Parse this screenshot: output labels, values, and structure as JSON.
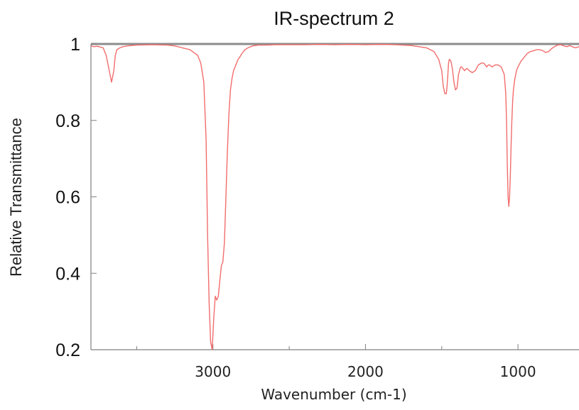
{
  "chart_data": {
    "type": "line",
    "title": "IR-spectrum 2",
    "xlabel": "Wavenumber (cm-1)",
    "ylabel": "Relative Transmittance",
    "xlim": [
      3800,
      600
    ],
    "ylim": [
      0.2,
      1.0
    ],
    "x_reversed": true,
    "xticks": [
      3000,
      2000,
      1000
    ],
    "xtick_labels": [
      "3000",
      "2000",
      "1000"
    ],
    "yticks": [
      0.2,
      0.4,
      0.6,
      0.8,
      1.0
    ],
    "ytick_labels": [
      "0.2",
      "0.4",
      "0.6",
      "0.8",
      "1"
    ],
    "grid": false,
    "line_color": "#f26d6d",
    "reference_line": {
      "y": 1.0,
      "color": "#8c8c8c"
    },
    "series": [
      {
        "x": [
          3800,
          3780,
          3760,
          3740,
          3720,
          3700,
          3680,
          3665,
          3650,
          3640,
          3630,
          3610,
          3590,
          3560,
          3500,
          3400,
          3300,
          3250,
          3200,
          3150,
          3100,
          3080,
          3060,
          3045,
          3035,
          3025,
          3015,
          3005,
          2995,
          2985,
          2975,
          2965,
          2955,
          2945,
          2935,
          2925,
          2915,
          2905,
          2895,
          2885,
          2875,
          2865,
          2855,
          2845,
          2835,
          2825,
          2810,
          2790,
          2770,
          2740,
          2700,
          2650,
          2600,
          2500,
          2400,
          2300,
          2200,
          2100,
          2000,
          1900,
          1800,
          1700,
          1600,
          1550,
          1520,
          1500,
          1490,
          1480,
          1470,
          1465,
          1460,
          1455,
          1450,
          1440,
          1430,
          1420,
          1410,
          1400,
          1390,
          1380,
          1375,
          1370,
          1360,
          1350,
          1340,
          1330,
          1320,
          1300,
          1280,
          1260,
          1240,
          1225,
          1215,
          1205,
          1195,
          1185,
          1170,
          1150,
          1130,
          1110,
          1090,
          1080,
          1075,
          1070,
          1065,
          1060,
          1055,
          1050,
          1045,
          1040,
          1035,
          1030,
          1020,
          1010,
          1000,
          980,
          960,
          940,
          920,
          900,
          880,
          860,
          840,
          820,
          800,
          780,
          760,
          740,
          720,
          700,
          680,
          660,
          640,
          620,
          600
        ],
        "values": [
          0.995,
          0.993,
          0.994,
          0.992,
          0.99,
          0.97,
          0.93,
          0.9,
          0.93,
          0.97,
          0.985,
          0.99,
          0.993,
          0.995,
          0.997,
          0.998,
          0.997,
          0.995,
          0.99,
          0.985,
          0.97,
          0.95,
          0.9,
          0.75,
          0.5,
          0.32,
          0.22,
          0.2,
          0.28,
          0.34,
          0.33,
          0.34,
          0.38,
          0.42,
          0.43,
          0.48,
          0.6,
          0.72,
          0.82,
          0.88,
          0.91,
          0.93,
          0.94,
          0.95,
          0.96,
          0.965,
          0.975,
          0.985,
          0.99,
          0.995,
          0.997,
          0.997,
          0.998,
          0.998,
          0.998,
          0.999,
          0.998,
          0.999,
          0.998,
          0.999,
          0.998,
          0.996,
          0.99,
          0.98,
          0.96,
          0.93,
          0.89,
          0.87,
          0.87,
          0.89,
          0.92,
          0.95,
          0.96,
          0.955,
          0.935,
          0.9,
          0.88,
          0.885,
          0.92,
          0.935,
          0.94,
          0.94,
          0.935,
          0.93,
          0.935,
          0.935,
          0.93,
          0.925,
          0.93,
          0.945,
          0.95,
          0.95,
          0.945,
          0.94,
          0.945,
          0.945,
          0.94,
          0.945,
          0.945,
          0.94,
          0.92,
          0.87,
          0.8,
          0.68,
          0.6,
          0.575,
          0.6,
          0.66,
          0.74,
          0.8,
          0.85,
          0.88,
          0.91,
          0.93,
          0.94,
          0.955,
          0.965,
          0.975,
          0.98,
          0.982,
          0.985,
          0.985,
          0.983,
          0.978,
          0.98,
          0.988,
          0.993,
          0.997,
          0.998,
          0.995,
          0.993,
          0.996,
          0.992,
          0.99,
          0.993
        ]
      }
    ]
  }
}
